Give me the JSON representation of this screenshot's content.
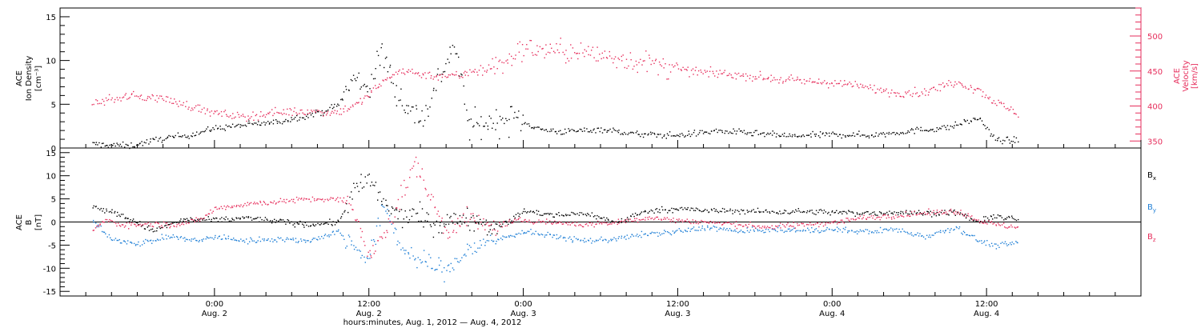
{
  "chart_data": [
    {
      "type": "scatter",
      "panel": "top",
      "ylabel_left": [
        "ACE",
        "Ion Density",
        "[cm⁻³]"
      ],
      "ylabel_right": [
        "ACE",
        "Velocity",
        "[km/s]"
      ],
      "ylim_left": [
        0,
        16
      ],
      "yticks_left": [
        "0",
        "5",
        "10",
        "15"
      ],
      "ylim_right": [
        340,
        540
      ],
      "yticks_right": [
        "350",
        "400",
        "450",
        "500"
      ],
      "series": [
        {
          "axis": "left",
          "color": "#000000",
          "points": [
            [
              -9.5,
              0.5
            ],
            [
              -6.6,
              0.3
            ],
            [
              -4.2,
              1.1
            ],
            [
              -1.8,
              1.6
            ],
            [
              0,
              2.3
            ],
            [
              2.4,
              2.7
            ],
            [
              4.8,
              3.0
            ],
            [
              6.6,
              3.6
            ],
            [
              8.4,
              4.2
            ],
            [
              9.6,
              5.0
            ],
            [
              10.8,
              8.0
            ],
            [
              12.0,
              7.0
            ],
            [
              13.0,
              11.0
            ],
            [
              14.0,
              7.0
            ],
            [
              15.0,
              4.5
            ],
            [
              16.2,
              3.5
            ],
            [
              17.4,
              8.0
            ],
            [
              18.6,
              12.0
            ],
            [
              19.8,
              2.5
            ],
            [
              21.6,
              3.0
            ],
            [
              23.4,
              3.5
            ],
            [
              25.2,
              2.2
            ],
            [
              27.0,
              1.9
            ],
            [
              30.0,
              2.2
            ],
            [
              33.0,
              1.6
            ],
            [
              36.0,
              1.5
            ],
            [
              39.0,
              2.0
            ],
            [
              42.0,
              1.7
            ],
            [
              45.0,
              1.4
            ],
            [
              48.0,
              1.6
            ],
            [
              51.0,
              1.5
            ],
            [
              54.0,
              2.0
            ],
            [
              57.0,
              2.4
            ],
            [
              59.4,
              3.5
            ],
            [
              60.6,
              1.0
            ],
            [
              62.4,
              0.9
            ]
          ]
        },
        {
          "axis": "right",
          "color": "#e62e5c",
          "points": [
            [
              -9.5,
              405
            ],
            [
              -6.6,
              415
            ],
            [
              -4.2,
              412
            ],
            [
              -1.8,
              400
            ],
            [
              0,
              390
            ],
            [
              2.4,
              385
            ],
            [
              4.8,
              392
            ],
            [
              7.2,
              393
            ],
            [
              9.6,
              392
            ],
            [
              11.4,
              407
            ],
            [
              12.6,
              428
            ],
            [
              14.4,
              452
            ],
            [
              16.8,
              444
            ],
            [
              19.2,
              444
            ],
            [
              20.4,
              455
            ],
            [
              22.2,
              458
            ],
            [
              24.0,
              483
            ],
            [
              26.4,
              480
            ],
            [
              28.8,
              476
            ],
            [
              31.2,
              470
            ],
            [
              33.6,
              462
            ],
            [
              36.0,
              452
            ],
            [
              38.4,
              448
            ],
            [
              40.8,
              445
            ],
            [
              43.2,
              440
            ],
            [
              45.6,
              436
            ],
            [
              48.0,
              434
            ],
            [
              50.4,
              428
            ],
            [
              52.8,
              420
            ],
            [
              55.2,
              420
            ],
            [
              57.6,
              436
            ],
            [
              59.4,
              423
            ],
            [
              60.6,
              407
            ],
            [
              61.8,
              395
            ],
            [
              62.4,
              390
            ]
          ]
        }
      ]
    },
    {
      "type": "scatter",
      "panel": "bottom",
      "ylabel": [
        "ACE",
        "B",
        "[nT]"
      ],
      "ylim": [
        -16,
        16
      ],
      "yticks": [
        "-15",
        "-10",
        "-5",
        "0",
        "5",
        "10",
        "15"
      ],
      "series": [
        {
          "name": "Bx",
          "color": "#000000",
          "points": [
            [
              -9.5,
              3.5
            ],
            [
              -7.2,
              1.5
            ],
            [
              -4.8,
              -1.8
            ],
            [
              -2.4,
              0.6
            ],
            [
              0,
              0.5
            ],
            [
              2.4,
              1.0
            ],
            [
              4.8,
              0.3
            ],
            [
              7.2,
              -0.5
            ],
            [
              9.6,
              0
            ],
            [
              10.8,
              7.0
            ],
            [
              12.0,
              9.0
            ],
            [
              13.2,
              4.0
            ],
            [
              14.4,
              1.0
            ],
            [
              15.6,
              2.0
            ],
            [
              16.8,
              -0.5
            ],
            [
              18.0,
              0
            ],
            [
              19.2,
              1.0
            ],
            [
              20.4,
              0.6
            ],
            [
              21.6,
              -1.0
            ],
            [
              22.8,
              0
            ],
            [
              24.0,
              2.5
            ],
            [
              26.4,
              1.5
            ],
            [
              28.8,
              2.0
            ],
            [
              31.2,
              0
            ],
            [
              33.6,
              2.5
            ],
            [
              36.0,
              3.0
            ],
            [
              38.4,
              2.5
            ],
            [
              40.8,
              2.5
            ],
            [
              43.2,
              2.3
            ],
            [
              45.6,
              2.4
            ],
            [
              48.0,
              2.2
            ],
            [
              50.4,
              2.0
            ],
            [
              52.8,
              2.2
            ],
            [
              55.2,
              2.0
            ],
            [
              57.6,
              2.2
            ],
            [
              59.4,
              0
            ],
            [
              60.6,
              1.5
            ],
            [
              62.4,
              0.5
            ]
          ]
        },
        {
          "name": "By",
          "color": "#1f7fd6",
          "points": [
            [
              -9.5,
              0.5
            ],
            [
              -8.4,
              -3.0
            ],
            [
              -7.2,
              -4.0
            ],
            [
              -6.0,
              -4.5
            ],
            [
              -4.8,
              -4.0
            ],
            [
              -3.6,
              -3.0
            ],
            [
              -2.4,
              -3.5
            ],
            [
              -1.2,
              -4.0
            ],
            [
              0,
              -3.0
            ],
            [
              2.4,
              -4.0
            ],
            [
              4.8,
              -3.5
            ],
            [
              7.2,
              -4.0
            ],
            [
              9.6,
              -2.0
            ],
            [
              10.8,
              -5.0
            ],
            [
              12.0,
              -8.0
            ],
            [
              13.2,
              4.0
            ],
            [
              14.4,
              -5.0
            ],
            [
              15.6,
              -8.0
            ],
            [
              16.8,
              -9.0
            ],
            [
              18.0,
              -10.5
            ],
            [
              19.2,
              -7.0
            ],
            [
              20.4,
              -5.0
            ],
            [
              21.6,
              -4.0
            ],
            [
              22.8,
              -3.0
            ],
            [
              24.0,
              -2.0
            ],
            [
              26.4,
              -3.0
            ],
            [
              28.8,
              -4.0
            ],
            [
              31.2,
              -3.5
            ],
            [
              33.6,
              -2.5
            ],
            [
              36.0,
              -2.0
            ],
            [
              38.4,
              -1.0
            ],
            [
              40.8,
              -2.0
            ],
            [
              43.2,
              -1.5
            ],
            [
              45.6,
              -1.8
            ],
            [
              48.0,
              -1.5
            ],
            [
              50.4,
              -2.0
            ],
            [
              52.8,
              -1.5
            ],
            [
              55.2,
              -3.0
            ],
            [
              57.6,
              -1.0
            ],
            [
              59.4,
              -4.0
            ],
            [
              60.6,
              -5.0
            ],
            [
              62.4,
              -4.5
            ]
          ]
        },
        {
          "name": "Bz",
          "color": "#e62e5c",
          "points": [
            [
              -9.5,
              -1.5
            ],
            [
              -8.4,
              0.5
            ],
            [
              -7.2,
              -0.5
            ],
            [
              -6.0,
              -0.5
            ],
            [
              -4.8,
              -0.3
            ],
            [
              -3.6,
              -0.5
            ],
            [
              -2.4,
              -0.2
            ],
            [
              -1.2,
              0.5
            ],
            [
              0,
              3.0
            ],
            [
              2.4,
              4.0
            ],
            [
              4.8,
              4.5
            ],
            [
              7.2,
              5.0
            ],
            [
              9.6,
              5.0
            ],
            [
              10.8,
              3.0
            ],
            [
              12.0,
              -8.0
            ],
            [
              13.2,
              -2.0
            ],
            [
              14.4,
              5.0
            ],
            [
              15.6,
              13.0
            ],
            [
              16.8,
              5.0
            ],
            [
              18.0,
              -2.0
            ],
            [
              19.2,
              1.0
            ],
            [
              20.4,
              0
            ],
            [
              21.6,
              -1.0
            ],
            [
              22.8,
              0
            ],
            [
              24.0,
              0.5
            ],
            [
              26.4,
              0
            ],
            [
              28.8,
              -0.5
            ],
            [
              31.2,
              0
            ],
            [
              33.6,
              1.0
            ],
            [
              36.0,
              0.5
            ],
            [
              38.4,
              0
            ],
            [
              40.8,
              -0.5
            ],
            [
              43.2,
              -1.0
            ],
            [
              45.6,
              -0.5
            ],
            [
              48.0,
              0
            ],
            [
              50.4,
              1.0
            ],
            [
              52.8,
              1.5
            ],
            [
              55.2,
              2.0
            ],
            [
              57.6,
              2.5
            ],
            [
              59.4,
              0.5
            ],
            [
              60.6,
              -0.5
            ],
            [
              62.4,
              -1.0
            ]
          ]
        }
      ],
      "legend": [
        "Bx",
        "By",
        "Bz"
      ]
    }
  ],
  "xaxis": {
    "range_hours": [
      -12,
      72
    ],
    "major_ticks": [
      {
        "hours": 0,
        "time": "0:00",
        "date": "Aug. 2"
      },
      {
        "hours": 12,
        "time": "12:00",
        "date": "Aug. 2"
      },
      {
        "hours": 24,
        "time": "0:00",
        "date": "Aug. 3"
      },
      {
        "hours": 36,
        "time": "12:00",
        "date": "Aug. 3"
      },
      {
        "hours": 48,
        "time": "0:00",
        "date": "Aug. 4"
      },
      {
        "hours": 60,
        "time": "12:00",
        "date": "Aug. 4"
      }
    ],
    "label": "hours:minutes, Aug.  1, 2012 — Aug.  4, 2012"
  },
  "legend_labels": {
    "bx": "B",
    "bx_sub": "x",
    "by": "B",
    "by_sub": "y",
    "bz": "B",
    "bz_sub": "z"
  }
}
